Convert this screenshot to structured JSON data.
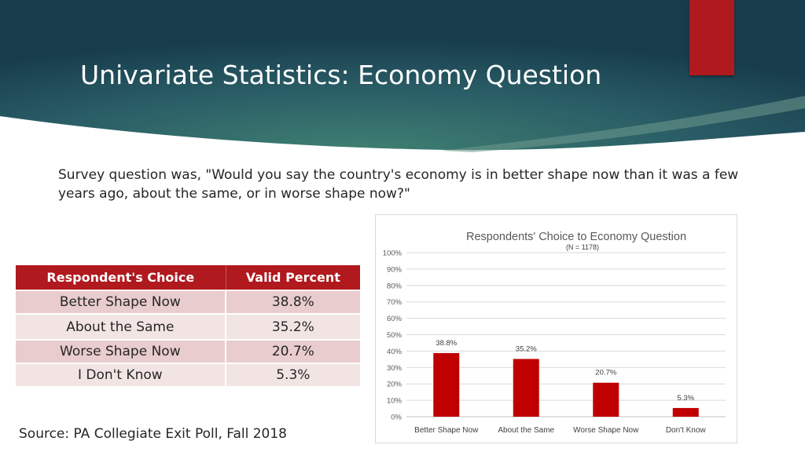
{
  "slide": {
    "title": "Univariate Statistics: Economy Question",
    "question": "Survey question was, \"Would you say the country's economy is in better shape now than it was a few years ago, about the same, or in worse shape now?\"",
    "source": "Source: PA Collegiate Exit Poll, Fall 2018"
  },
  "colors": {
    "accent": "#b0191e",
    "header_dark": "#1e4a5a",
    "header_teal": "#3f7f72"
  },
  "table": {
    "headers": [
      "Respondent's Choice",
      "Valid Percent"
    ],
    "rows": [
      [
        "Better Shape Now",
        "38.8%"
      ],
      [
        "About the Same",
        "35.2%"
      ],
      [
        "Worse Shape Now",
        "20.7%"
      ],
      [
        "I Don't Know",
        "5.3%"
      ]
    ]
  },
  "chart_data": {
    "type": "bar",
    "title": "Respondents' Choice to Economy Question",
    "subtitle": "(N = 1178)",
    "categories": [
      "Better Shape Now",
      "About the Same",
      "Worse Shape Now",
      "Don't Know"
    ],
    "values": [
      38.8,
      35.2,
      20.7,
      5.3
    ],
    "data_labels": [
      "38.8%",
      "35.2%",
      "20.7%",
      "5.3%"
    ],
    "yticks": [
      "0%",
      "10%",
      "20%",
      "30%",
      "40%",
      "50%",
      "60%",
      "70%",
      "80%",
      "90%",
      "100%"
    ],
    "ylim": [
      0,
      100
    ],
    "grid": true,
    "legend": "none",
    "bar_color": "#c00000"
  }
}
